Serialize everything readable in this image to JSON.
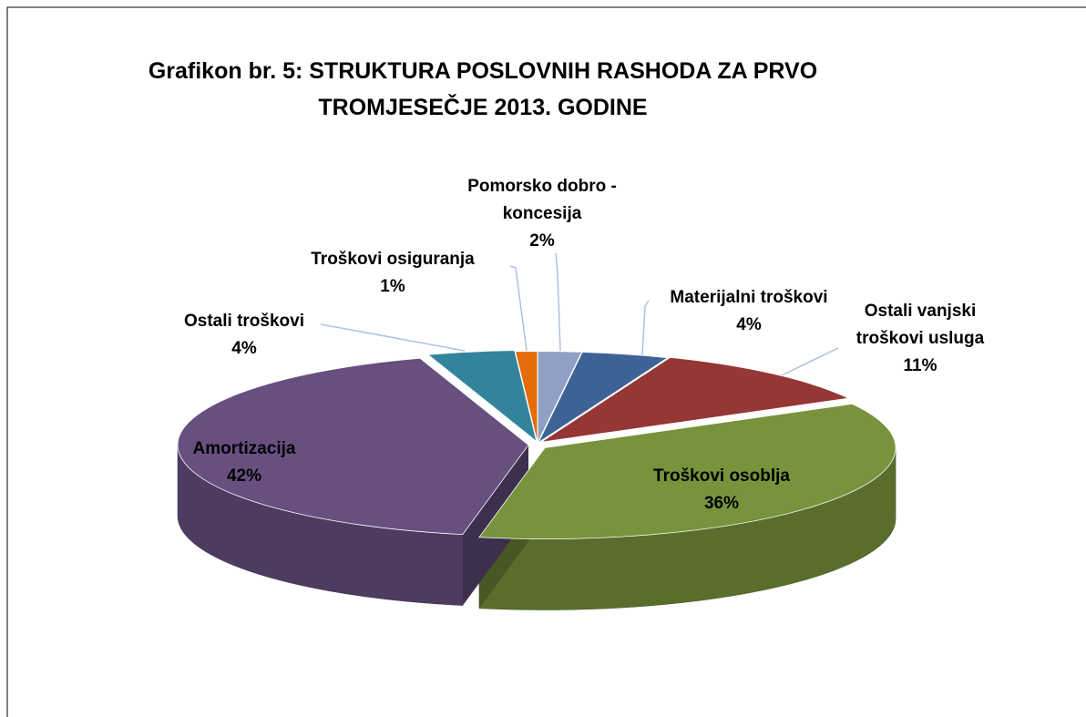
{
  "chart_data": {
    "type": "pie3d",
    "title": "Grafikon br. 5: STRUKTURA POSLOVNIH RASHODA ZA PRVO TROMJESEČJE 2013. GODINE",
    "categories": [
      "Pomorsko dobro - koncesija",
      "Materijalni troškovi",
      "Ostali vanjski troškovi usluga",
      "Troškovi osoblja",
      "Amortizacija",
      "Ostali troškovi",
      "Troškovi osiguranja"
    ],
    "values": [
      2,
      4,
      11,
      36,
      42,
      4,
      1
    ],
    "value_labels": [
      "2%",
      "4%",
      "11%",
      "36%",
      "42%",
      "4%",
      "1%"
    ],
    "colors": [
      "#8fa0c4",
      "#3d6396",
      "#953735",
      "#77933c",
      "#674f80",
      "#31849b",
      "#e46c0a"
    ]
  }
}
